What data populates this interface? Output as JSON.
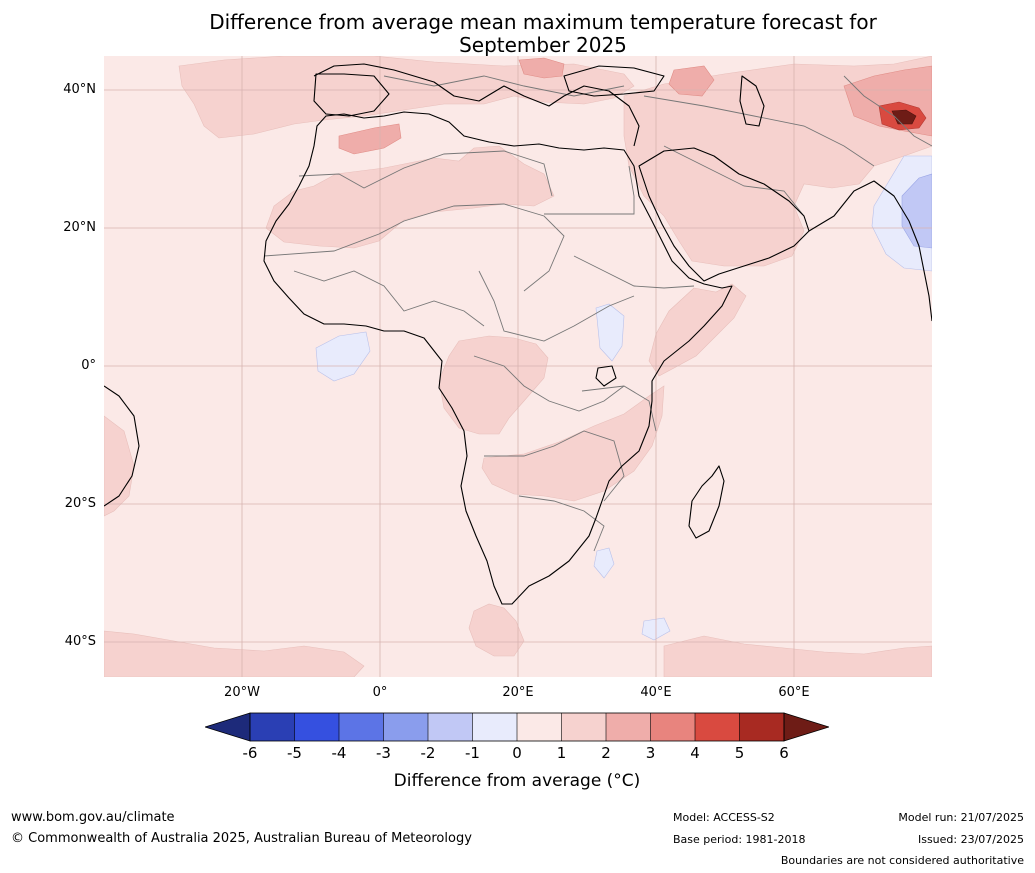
{
  "title_line1": "Difference from average mean maximum temperature forecast for",
  "title_line2": "September 2025",
  "lat_labels": [
    "40°N",
    "20°N",
    "0°",
    "20°S",
    "40°S"
  ],
  "lon_labels": [
    "20°W",
    "0°",
    "20°E",
    "40°E",
    "60°E"
  ],
  "colorbar": {
    "ticks": [
      "-6",
      "-5",
      "-4",
      "-3",
      "-2",
      "-1",
      "0",
      "1",
      "2",
      "3",
      "4",
      "5",
      "6"
    ],
    "colors": [
      "#1d2a7a",
      "#2a3fb4",
      "#3550e0",
      "#5c74e6",
      "#8a9ded",
      "#c1c8f5",
      "#e8ebfc",
      "#fbe9e7",
      "#f6d2cf",
      "#efadaa",
      "#e8847e",
      "#d94a40",
      "#a82a22",
      "#6e1c16"
    ],
    "label": "Difference from average (°C)"
  },
  "colors": {
    "background": "#fbe9e7",
    "warm": "#f6d2cf",
    "warmer": "#efadaa",
    "cool": "#e8ebfc",
    "cooler": "#c1c8f5",
    "grid": "#d7b3b0",
    "coast": "#000000",
    "border": "#777777"
  },
  "footer": {
    "website": "www.bom.gov.au/climate",
    "copyright": "© Commonwealth of Australia 2025, Australian Bureau of Meteorology",
    "model": "Model: ACCESS-S2",
    "base_period": "Base period: 1981-2018",
    "model_run": "Model run: 21/07/2025",
    "issued": "Issued: 23/07/2025",
    "boundaries": "Boundaries are not considered authoritative"
  }
}
